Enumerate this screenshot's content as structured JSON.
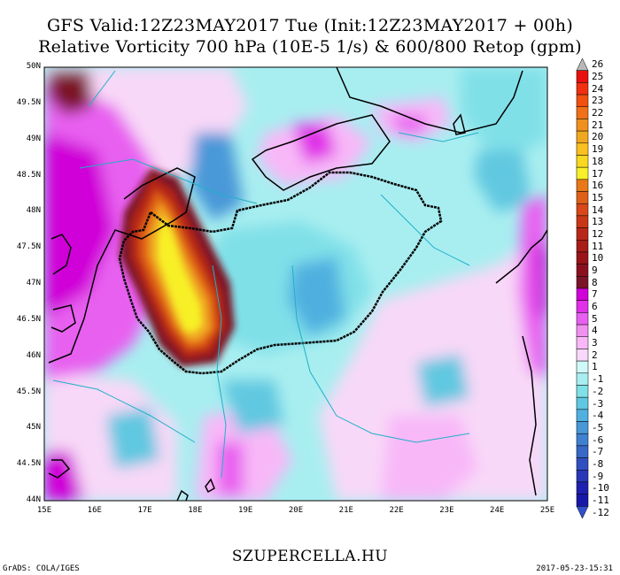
{
  "title_line1": "GFS Valid:12Z23MAY2017 Tue (Init:12Z23MAY2017 + 00h)",
  "title_line2": "Relative Vorticity 700 hPa (10E-5 1/s) & 600/800 Retop (gpm)",
  "lat_labels": [
    "50N",
    "49.5N",
    "49N",
    "48.5N",
    "48N",
    "47.5N",
    "47N",
    "46.5N",
    "46N",
    "45.5N",
    "45N",
    "44.5N",
    "44N"
  ],
  "lon_labels": [
    "15E",
    "16E",
    "17E",
    "18E",
    "19E",
    "20E",
    "21E",
    "22E",
    "23E",
    "24E",
    "25E"
  ],
  "colorbar": {
    "labels": [
      "26",
      "25",
      "24",
      "23",
      "22",
      "21",
      "20",
      "19",
      "18",
      "17",
      "16",
      "15",
      "14",
      "13",
      "12",
      "11",
      "10",
      "9",
      "8",
      "7",
      "6",
      "5",
      "4",
      "3",
      "2",
      "1",
      "-1",
      "-2",
      "-3",
      "-4",
      "-5",
      "-6",
      "-7",
      "-8",
      "-9",
      "-10",
      "-11",
      "-12"
    ],
    "colors": [
      "#b8b8b8",
      "#e81010",
      "#f03010",
      "#f05010",
      "#f07018",
      "#f09020",
      "#f0a820",
      "#f8c020",
      "#f8d820",
      "#f8f028",
      "#e87818",
      "#e06018",
      "#d84818",
      "#c83818",
      "#b82818",
      "#a81c18",
      "#981418",
      "#8a1020",
      "#7c1428",
      "#d000d8",
      "#e030e8",
      "#e860f0",
      "#f090f0",
      "#f8b8f8",
      "#f8d8f8",
      "#d0f8f8",
      "#a8eef0",
      "#80e0e8",
      "#60c8e0",
      "#50b0e0",
      "#4898d8",
      "#4080d0",
      "#3868c8",
      "#3050c0",
      "#2838b8",
      "#2020b0",
      "#1818a8",
      "#3050d0"
    ]
  },
  "site_label": "SZUPERCELLA.HU",
  "credit_label": "GrADS: COLA/IGES",
  "timestamp": "2017-05-23-15:31"
}
